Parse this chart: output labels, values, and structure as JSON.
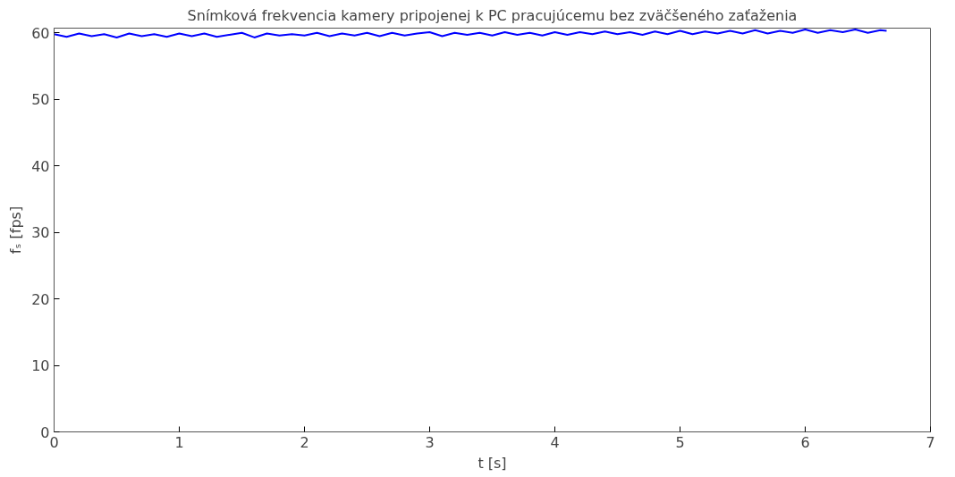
{
  "chart_data": {
    "type": "line",
    "title": "Snímková frekvencia kamery pripojenej k PC pracujúcemu bez zväčšeného zaťaženia",
    "xlabel": "t [s]",
    "ylabel": "fₛ [fps]",
    "x": [
      0,
      0.1,
      0.2,
      0.3,
      0.4,
      0.5,
      0.6,
      0.7,
      0.8,
      0.9,
      1.0,
      1.1,
      1.2,
      1.3,
      1.4,
      1.5,
      1.6,
      1.7,
      1.8,
      1.9,
      2.0,
      2.1,
      2.2,
      2.3,
      2.4,
      2.5,
      2.6,
      2.7,
      2.8,
      2.9,
      3.0,
      3.1,
      3.2,
      3.3,
      3.4,
      3.5,
      3.6,
      3.7,
      3.8,
      3.9,
      4.0,
      4.1,
      4.2,
      4.3,
      4.4,
      4.5,
      4.6,
      4.7,
      4.8,
      4.9,
      5.0,
      5.1,
      5.2,
      5.3,
      5.4,
      5.5,
      5.6,
      5.7,
      5.8,
      5.9,
      6.0,
      6.1,
      6.2,
      6.3,
      6.4,
      6.5,
      6.6,
      6.65
    ],
    "series": [
      {
        "color": "#0000ff",
        "values": [
          59.8,
          59.4,
          59.9,
          59.5,
          59.8,
          59.3,
          59.9,
          59.5,
          59.8,
          59.4,
          59.9,
          59.5,
          59.9,
          59.4,
          59.7,
          60.0,
          59.3,
          59.9,
          59.6,
          59.8,
          59.6,
          60.0,
          59.5,
          59.9,
          59.6,
          60.0,
          59.5,
          60.0,
          59.6,
          59.9,
          60.1,
          59.5,
          60.0,
          59.7,
          60.0,
          59.6,
          60.1,
          59.7,
          60.0,
          59.6,
          60.1,
          59.7,
          60.1,
          59.8,
          60.2,
          59.8,
          60.1,
          59.7,
          60.2,
          59.8,
          60.3,
          59.8,
          60.2,
          59.9,
          60.3,
          59.9,
          60.4,
          59.9,
          60.3,
          60.0,
          60.5,
          60.0,
          60.4,
          60.1,
          60.5,
          60.0,
          60.4,
          60.3
        ]
      }
    ],
    "xlim": [
      0,
      7
    ],
    "ylim": [
      0,
      60.7
    ],
    "xticks": [
      0,
      1,
      2,
      3,
      4,
      5,
      6,
      7
    ],
    "yticks": [
      0,
      10,
      20,
      30,
      40,
      50,
      60
    ],
    "grid": false
  }
}
